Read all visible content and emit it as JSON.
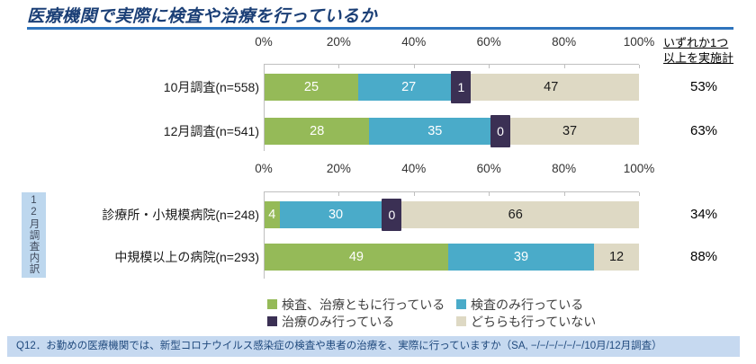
{
  "title": "医療機関で実際に検査や治療を行っているか",
  "right_header": {
    "line1": "いずれか1つ",
    "line2": "以上を実施計"
  },
  "side_label": "12月調査内訳",
  "colors": {
    "both": "#95ba58",
    "test_only": "#4aabc9",
    "treat_only": "#3b3054",
    "neither": "#ded9c4",
    "title_navy": "#1b3f76",
    "rule_blue": "#2f74bd",
    "side_box_bg": "#bdd7ee",
    "footnote_bg": "#c6d9f0",
    "footnote_text": "#1f497d"
  },
  "legend": [
    {
      "key": "both",
      "label": "検査、治療ともに行っている",
      "color": "#95ba58"
    },
    {
      "key": "test_only",
      "label": "検査のみ行っている",
      "color": "#4aabc9"
    },
    {
      "key": "treat_only",
      "label": "治療のみ行っている",
      "color": "#3b3054"
    },
    {
      "key": "neither",
      "label": "どちらも行っていない",
      "color": "#ded9c4"
    }
  ],
  "chart_data": [
    {
      "type": "bar",
      "stacked": true,
      "orientation": "horizontal",
      "xlim": [
        0,
        100
      ],
      "x_ticks": [
        "0%",
        "20%",
        "40%",
        "60%",
        "80%",
        "100%"
      ],
      "categories": [
        "10月調査(n=558)",
        "12月調査(n=541)"
      ],
      "series": [
        {
          "name": "検査、治療ともに行っている",
          "key": "both",
          "values": [
            25,
            28
          ]
        },
        {
          "name": "検査のみ行っている",
          "key": "test_only",
          "values": [
            27,
            35
          ]
        },
        {
          "name": "治療のみ行っている",
          "key": "treat_only",
          "values": [
            1,
            0
          ]
        },
        {
          "name": "どちらも行っていない",
          "key": "neither",
          "values": [
            47,
            37
          ]
        }
      ],
      "treat_only_label_shown": [
        true,
        true
      ],
      "totals": {
        "label": "いずれか1つ以上を実施計",
        "values": [
          "53%",
          "63%"
        ]
      }
    },
    {
      "type": "bar",
      "stacked": true,
      "orientation": "horizontal",
      "xlim": [
        0,
        100
      ],
      "x_ticks": [
        "0%",
        "20%",
        "40%",
        "60%",
        "80%",
        "100%"
      ],
      "categories": [
        "診療所・小規模病院(n=248)",
        "中規模以上の病院(n=293)"
      ],
      "series": [
        {
          "name": "検査、治療ともに行っている",
          "key": "both",
          "values": [
            4,
            49
          ]
        },
        {
          "name": "検査のみ行っている",
          "key": "test_only",
          "values": [
            30,
            39
          ]
        },
        {
          "name": "治療のみ行っている",
          "key": "treat_only",
          "values": [
            0,
            0
          ]
        },
        {
          "name": "どちらも行っていない",
          "key": "neither",
          "values": [
            66,
            12
          ]
        }
      ],
      "treat_only_label_shown": [
        true,
        false
      ],
      "totals": {
        "label": "いずれか1つ以上を実施計",
        "values": [
          "34%",
          "88%"
        ]
      }
    }
  ],
  "footnote": "Q12．お勤めの医療機関では、新型コロナウイルス感染症の検査や患者の治療を、実際に行っていますか（SA, −/−/−/−/−/−/10月/12月調査）"
}
